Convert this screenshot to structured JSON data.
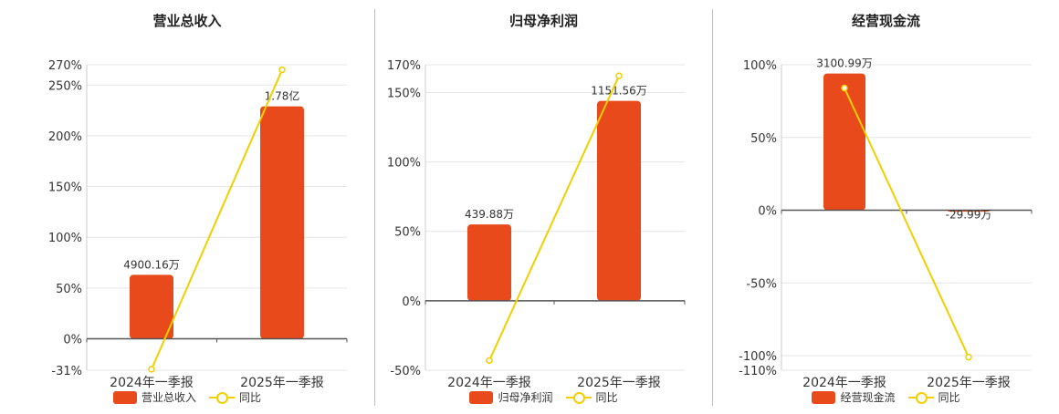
{
  "chart_data": [
    {
      "type": "bar",
      "title": "营业总收入",
      "categories": [
        "2024年一季报",
        "2025年一季报"
      ],
      "series": [
        {
          "name": "营业总收入",
          "type": "bar",
          "values": [
            63,
            229
          ],
          "labels": [
            "4900.16万",
            "1.78亿"
          ],
          "color": "#e84a1b"
        },
        {
          "name": "同比",
          "type": "line",
          "values": [
            -30,
            265
          ],
          "color": "#f1cf00"
        }
      ],
      "yticks": [
        "270%",
        "250%",
        "200%",
        "150%",
        "100%",
        "50%",
        "0%",
        "-31%"
      ],
      "ylim": [
        -31,
        270
      ],
      "legend": "bottom",
      "grid": true
    },
    {
      "type": "bar",
      "title": "归母净利润",
      "categories": [
        "2024年一季报",
        "2025年一季报"
      ],
      "series": [
        {
          "name": "归母净利润",
          "type": "bar",
          "values": [
            55,
            144
          ],
          "labels": [
            "439.88万",
            "1151.56万"
          ],
          "color": "#e84a1b"
        },
        {
          "name": "同比",
          "type": "line",
          "values": [
            -43,
            162
          ],
          "color": "#f1cf00"
        }
      ],
      "yticks": [
        "170%",
        "150%",
        "100%",
        "50%",
        "0%",
        "-50%"
      ],
      "ylim": [
        -50,
        170
      ],
      "legend": "bottom",
      "grid": true
    },
    {
      "type": "bar",
      "title": "经营现金流",
      "categories": [
        "2024年一季报",
        "2025年一季报"
      ],
      "series": [
        {
          "name": "经营现金流",
          "type": "bar",
          "values": [
            94,
            -1
          ],
          "labels": [
            "3100.99万",
            "-29.99万"
          ],
          "color": "#e84a1b"
        },
        {
          "name": "同比",
          "type": "line",
          "values": [
            84,
            -101
          ],
          "color": "#f1cf00"
        }
      ],
      "yticks": [
        "100%",
        "50%",
        "0%",
        "-50%",
        "-100%",
        "-110%"
      ],
      "ylim": [
        -110,
        100
      ],
      "legend": "bottom",
      "grid": true
    }
  ]
}
